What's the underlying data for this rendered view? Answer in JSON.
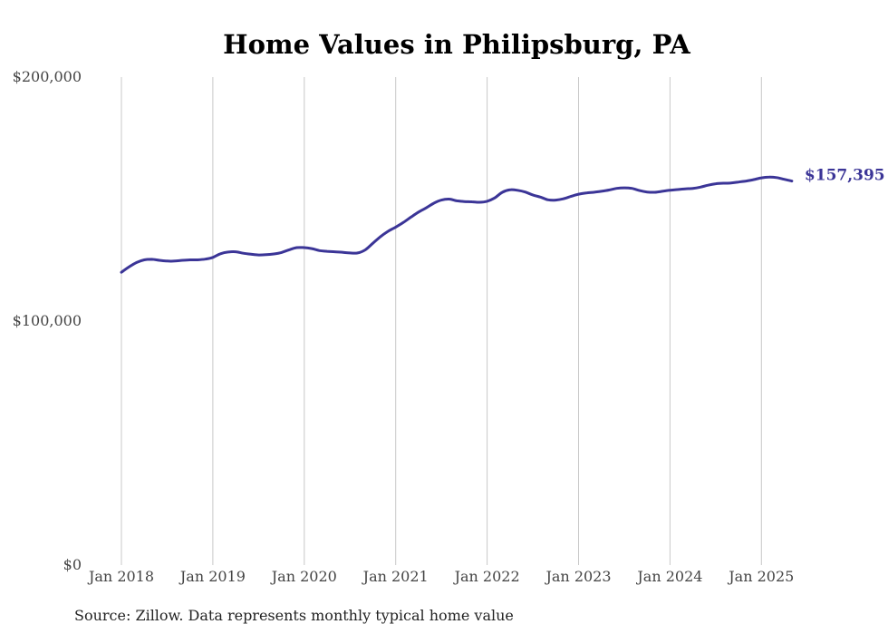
{
  "chart_data": {
    "type": "line",
    "title": "Home Values in Philipsburg, PA",
    "xlabel": "",
    "ylabel": "",
    "ylim": [
      0,
      200000
    ],
    "y_ticks": [
      {
        "value": 0,
        "label": "$0"
      },
      {
        "value": 100000,
        "label": "$100,000"
      },
      {
        "value": 200000,
        "label": "$200,000"
      }
    ],
    "x_ticks": [
      {
        "value": "2018-01",
        "label": "Jan 2018"
      },
      {
        "value": "2019-01",
        "label": "Jan 2019"
      },
      {
        "value": "2020-01",
        "label": "Jan 2020"
      },
      {
        "value": "2021-01",
        "label": "Jan 2021"
      },
      {
        "value": "2022-01",
        "label": "Jan 2022"
      },
      {
        "value": "2023-01",
        "label": "Jan 2023"
      },
      {
        "value": "2024-01",
        "label": "Jan 2024"
      },
      {
        "value": "2025-01",
        "label": "Jan 2025"
      }
    ],
    "xlim": [
      "2018-01",
      "2025-05"
    ],
    "grid": {
      "vertical": true,
      "horizontal": false
    },
    "line_color": "#3b3597",
    "end_label": "$157,395",
    "series": [
      {
        "x": [
          "2018-01",
          "2018-02",
          "2018-03",
          "2018-04",
          "2018-05",
          "2018-06",
          "2018-07",
          "2018-08",
          "2018-09",
          "2018-10",
          "2018-11",
          "2018-12",
          "2019-01",
          "2019-02",
          "2019-03",
          "2019-04",
          "2019-05",
          "2019-06",
          "2019-07",
          "2019-08",
          "2019-09",
          "2019-10",
          "2019-11",
          "2019-12",
          "2020-01",
          "2020-02",
          "2020-03",
          "2020-04",
          "2020-05",
          "2020-06",
          "2020-07",
          "2020-08",
          "2020-09",
          "2020-10",
          "2020-11",
          "2020-12",
          "2021-01",
          "2021-02",
          "2021-03",
          "2021-04",
          "2021-05",
          "2021-06",
          "2021-07",
          "2021-08",
          "2021-09",
          "2021-10",
          "2021-11",
          "2021-12",
          "2022-01",
          "2022-02",
          "2022-03",
          "2022-04",
          "2022-05",
          "2022-06",
          "2022-07",
          "2022-08",
          "2022-09",
          "2022-10",
          "2022-11",
          "2022-12",
          "2023-01",
          "2023-02",
          "2023-03",
          "2023-04",
          "2023-05",
          "2023-06",
          "2023-07",
          "2023-08",
          "2023-09",
          "2023-10",
          "2023-11",
          "2023-12",
          "2024-01",
          "2024-02",
          "2024-03",
          "2024-04",
          "2024-05",
          "2024-06",
          "2024-07",
          "2024-08",
          "2024-09",
          "2024-10",
          "2024-11",
          "2024-12",
          "2025-01",
          "2025-02",
          "2025-03",
          "2025-04",
          "2025-05"
        ],
        "values": [
          120000,
          122200,
          124000,
          125100,
          125300,
          124900,
          124600,
          124600,
          124900,
          125100,
          125100,
          125400,
          126100,
          127600,
          128300,
          128400,
          127800,
          127400,
          127100,
          127200,
          127500,
          128100,
          129200,
          130100,
          130100,
          129700,
          128900,
          128600,
          128400,
          128200,
          127900,
          127900,
          129200,
          131900,
          134600,
          136800,
          138500,
          140400,
          142600,
          144700,
          146400,
          148300,
          149600,
          150000,
          149300,
          149000,
          148900,
          148700,
          149100,
          150500,
          152800,
          153800,
          153600,
          152900,
          151700,
          150800,
          149700,
          149600,
          150100,
          151100,
          152000,
          152500,
          152800,
          153200,
          153700,
          154400,
          154600,
          154400,
          153500,
          152900,
          152800,
          153200,
          153600,
          153900,
          154200,
          154400,
          154900,
          155700,
          156300,
          156500,
          156600,
          157000,
          157400,
          158000,
          158700,
          159000,
          158800,
          158100,
          157395
        ]
      }
    ]
  },
  "source_note": "Source: Zillow. Data represents monthly typical home value"
}
